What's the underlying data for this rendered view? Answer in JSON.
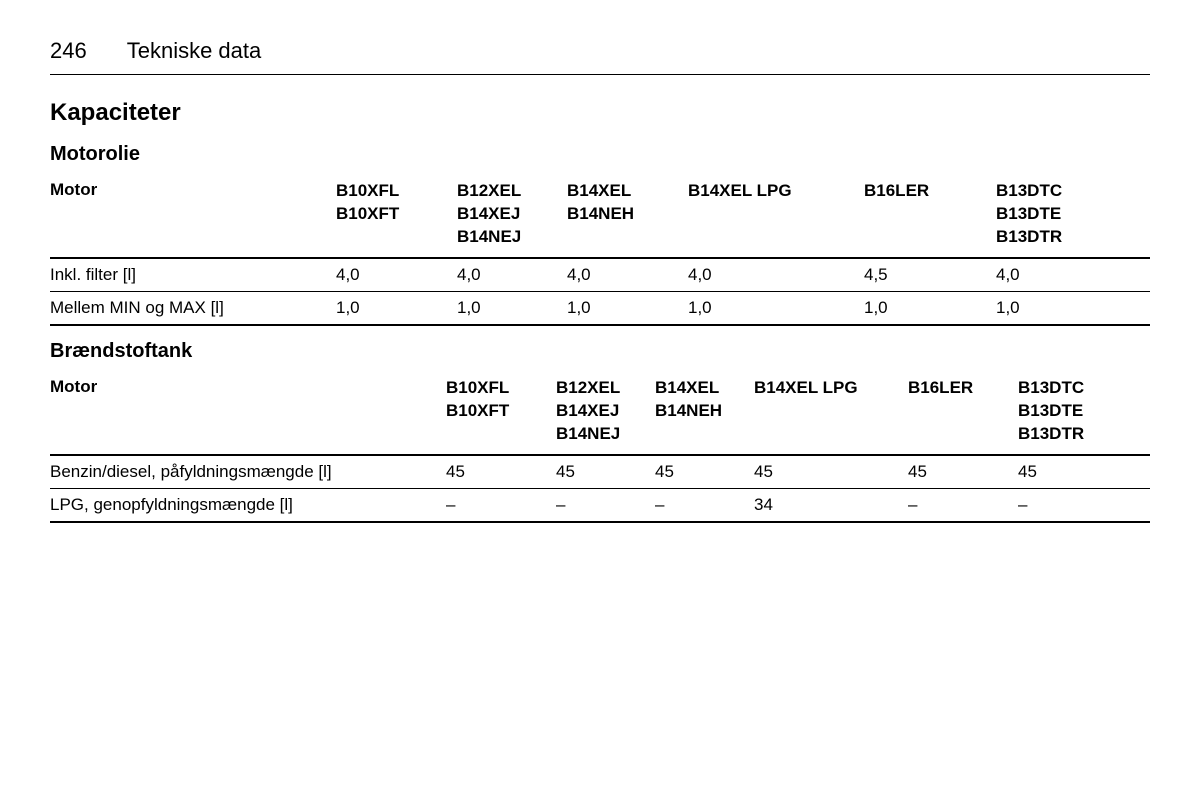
{
  "header": {
    "page_number": "246",
    "page_title": "Tekniske data"
  },
  "section_title": "Kapaciteter",
  "table1": {
    "subsection_title": "Motorolie",
    "label_col": "Motor",
    "columns": [
      "B10XFL\nB10XFT",
      "B12XEL\nB14XEJ\nB14NEJ",
      "B14XEL\nB14NEH",
      "B14XEL LPG",
      "B16LER",
      "B13DTC\nB13DTE\nB13DTR"
    ],
    "rows": [
      {
        "label": "Inkl. filter [l]",
        "values": [
          "4,0",
          "4,0",
          "4,0",
          "4,0",
          "4,5",
          "4,0"
        ]
      },
      {
        "label": "Mellem MIN og MAX [l]",
        "values": [
          "1,0",
          "1,0",
          "1,0",
          "1,0",
          "1,0",
          "1,0"
        ]
      }
    ]
  },
  "table2": {
    "subsection_title": "Brændstoftank",
    "label_col": "Motor",
    "columns": [
      "B10XFL\nB10XFT",
      "B12XEL\nB14XEJ\nB14NEJ",
      "B14XEL\nB14NEH",
      "B14XEL LPG",
      "B16LER",
      "B13DTC\nB13DTE\nB13DTR"
    ],
    "rows": [
      {
        "label": "Benzin/diesel, påfyldningsmængde [l]",
        "values": [
          "45",
          "45",
          "45",
          "45",
          "45",
          "45"
        ]
      },
      {
        "label": "LPG, genopfyldningsmængde [l]",
        "values": [
          "–",
          "–",
          "–",
          "34",
          "–",
          "–"
        ]
      }
    ]
  }
}
